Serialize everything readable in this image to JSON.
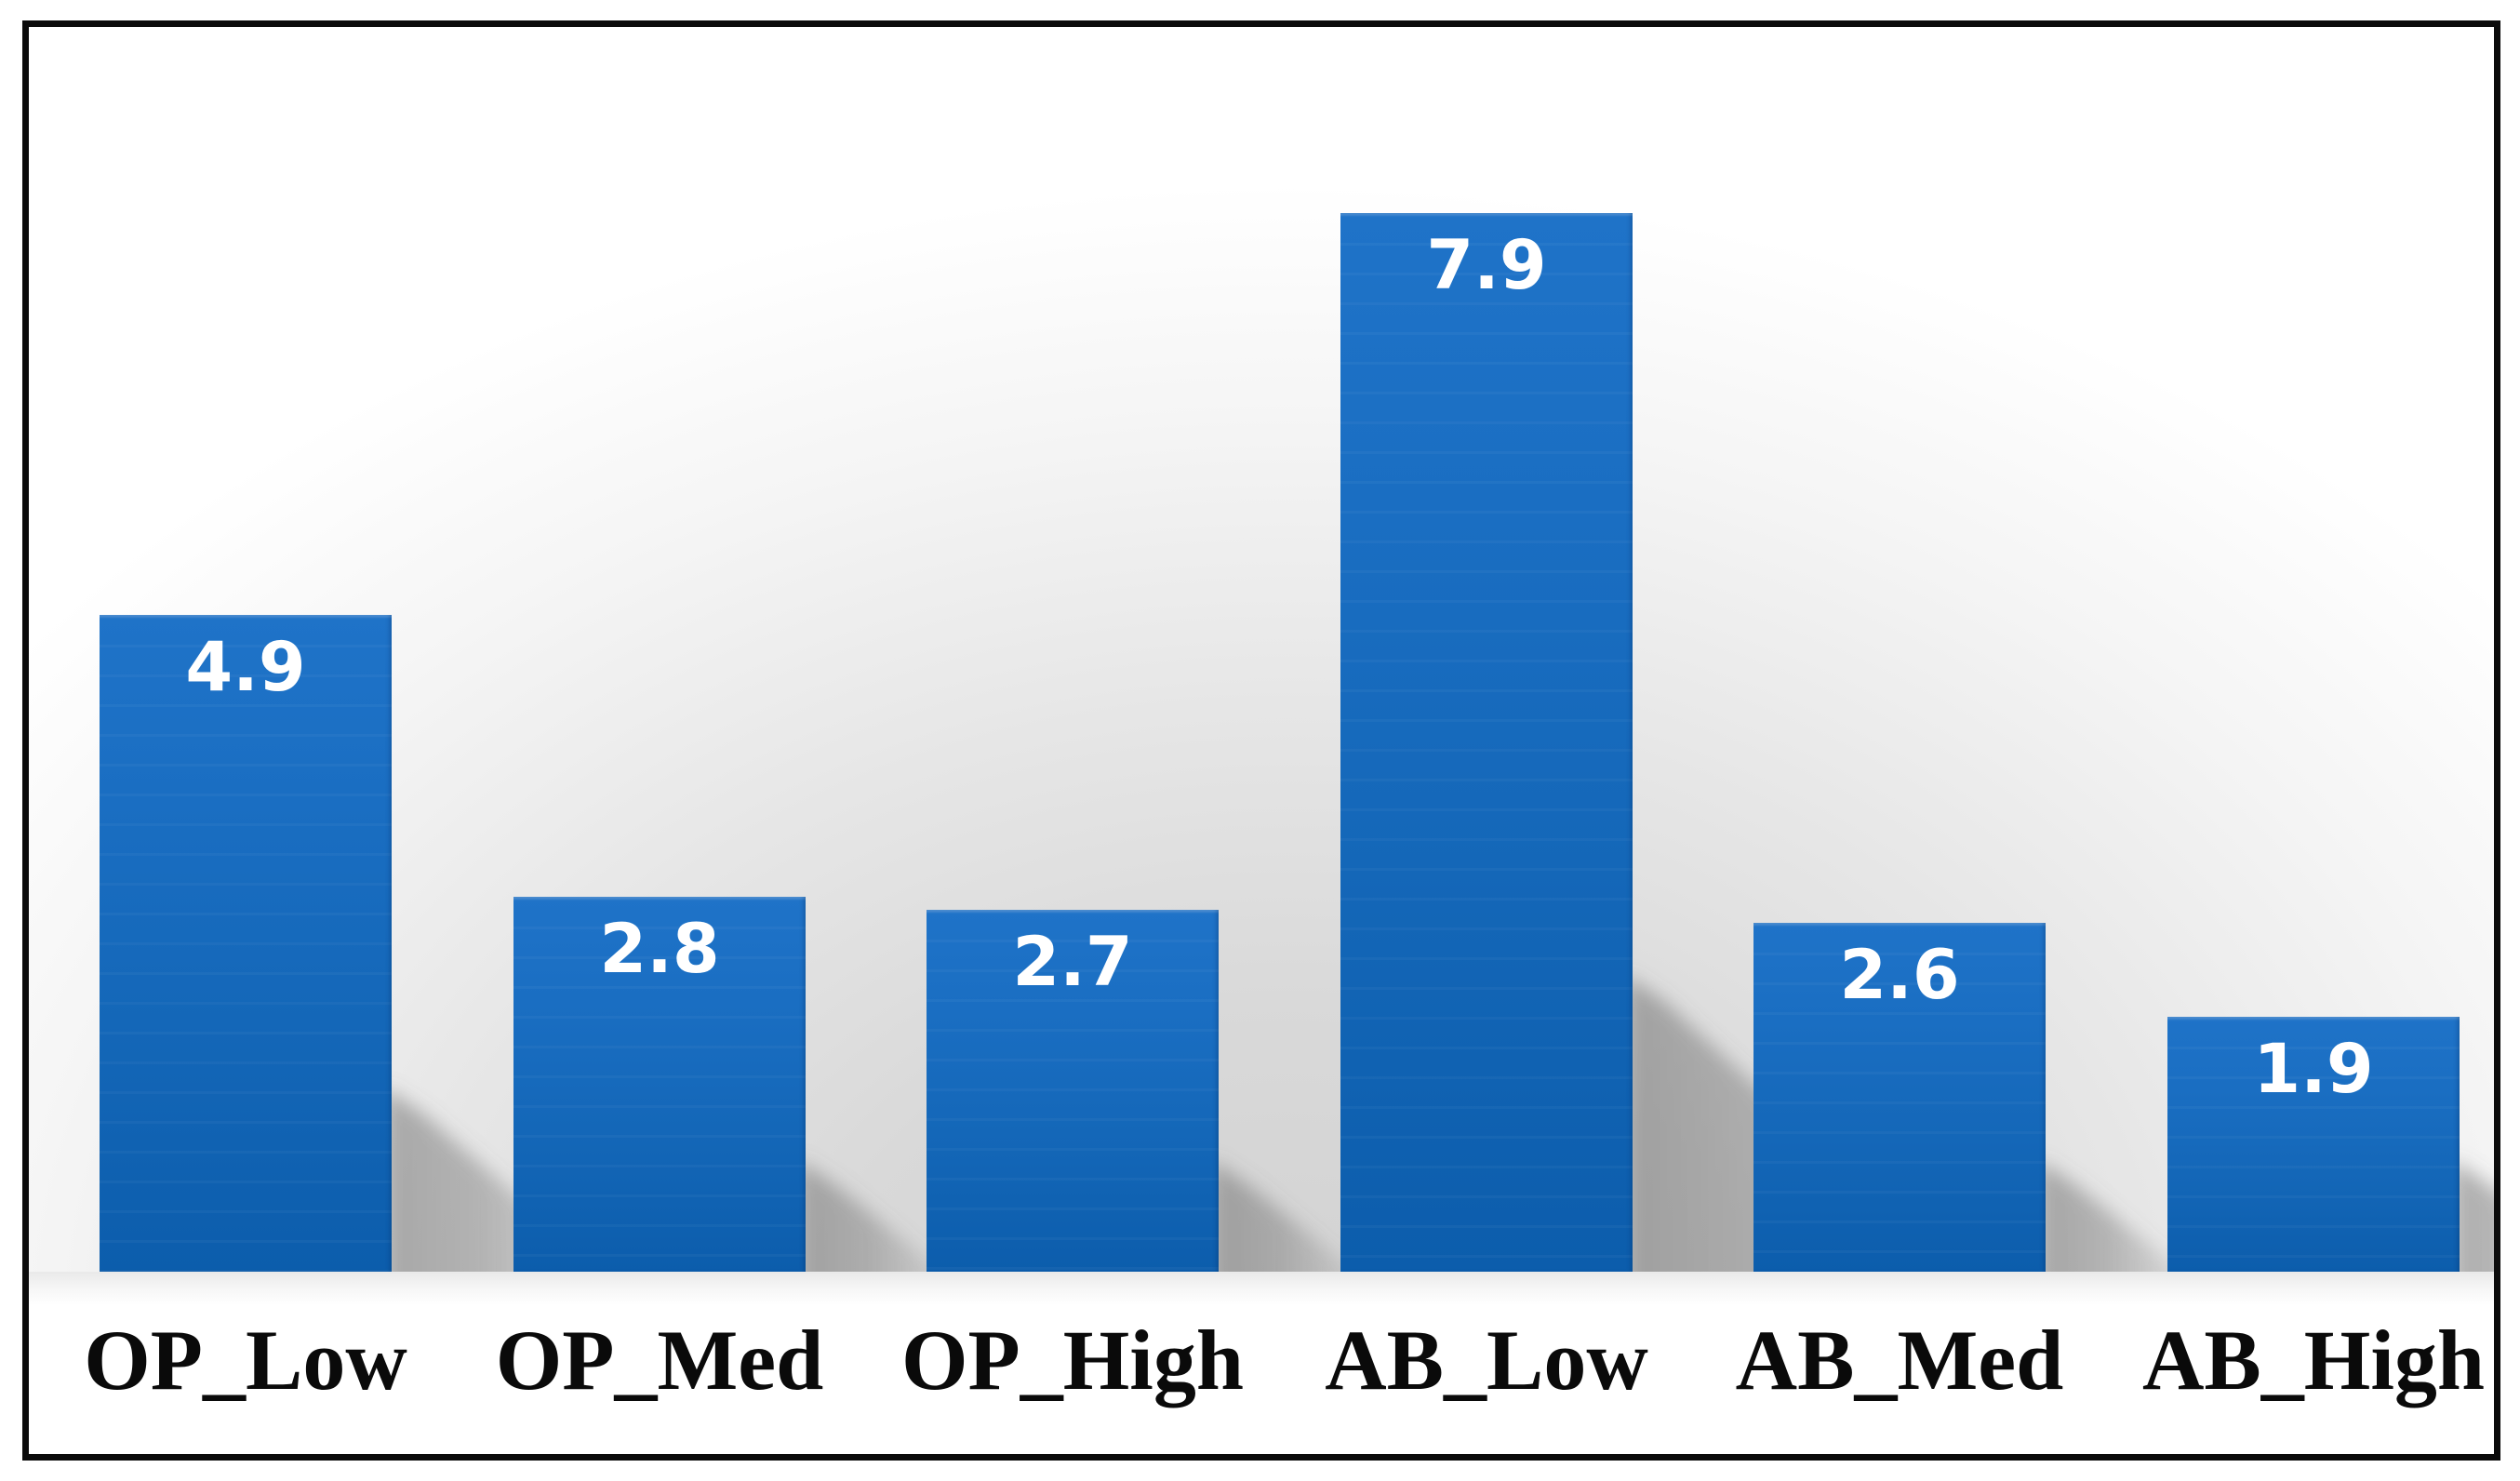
{
  "chart_data": {
    "type": "bar",
    "title": "",
    "xlabel": "",
    "ylabel": "",
    "categories": [
      "OP_Low",
      "OP_Med",
      "OP_High",
      "AB_Low",
      "AB_Med",
      "AB_High"
    ],
    "values": [
      4.9,
      2.8,
      2.7,
      7.9,
      2.6,
      1.9
    ],
    "data_labels": [
      "4.9",
      "2.8",
      "2.7",
      "7.9",
      "2.6",
      "1.9"
    ],
    "ylim": [
      0,
      8
    ],
    "grid": false,
    "legend": false,
    "bar_color_top": "#1f73c8",
    "bar_color_bottom": "#0c5dac",
    "value_label_color": "#ffffff",
    "category_label_color": "#0a0a0a",
    "frame_border_color": "#0b0b0b",
    "background_top": "#ffffff",
    "background_bottom_center": "#d2d2d2"
  }
}
